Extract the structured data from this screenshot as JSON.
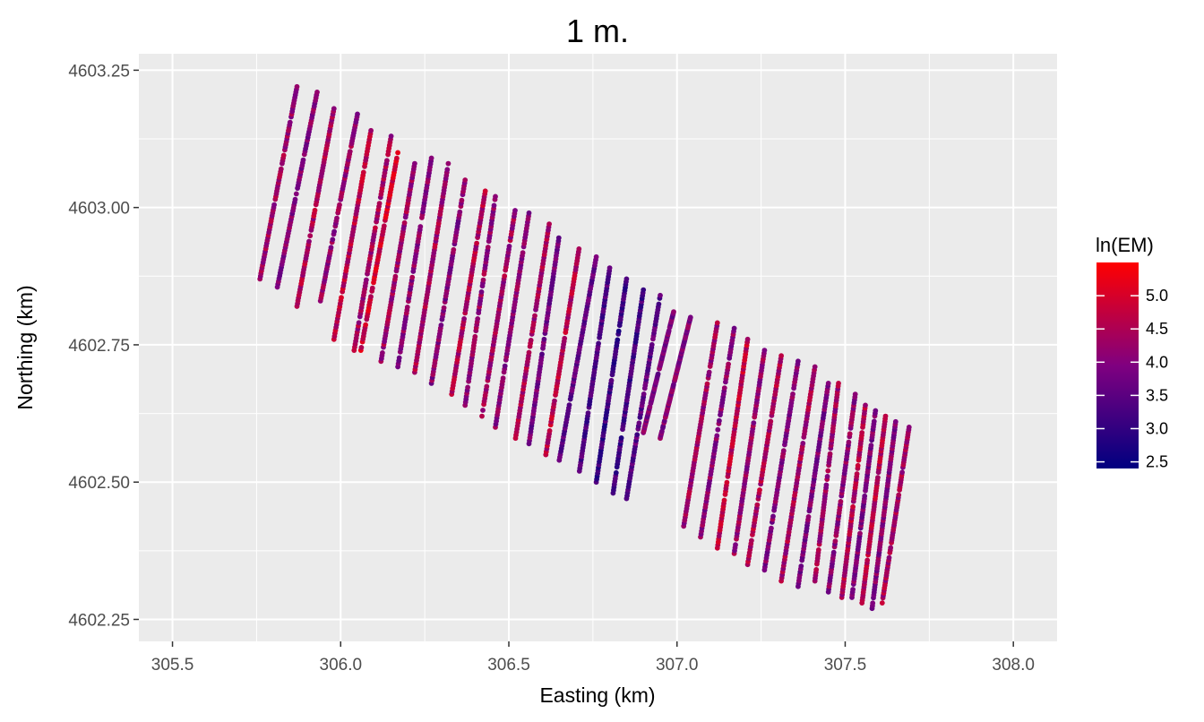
{
  "chart_data": {
    "type": "scatter",
    "title": "1 m.",
    "xlabel": "Easting (km)",
    "ylabel": "Northing (km)",
    "xlim": [
      305.4,
      308.13
    ],
    "ylim": [
      4602.21,
      4603.28
    ],
    "xticks": [
      "305.5",
      "306.0",
      "306.5",
      "307.0",
      "307.5",
      "308.0"
    ],
    "yticks": [
      "4602.25",
      "4602.50",
      "4602.75",
      "4603.00",
      "4603.25"
    ],
    "grid": true,
    "panel_background": "#ebebeb",
    "legend": {
      "title": "ln(EM)",
      "position": "right",
      "min": 2.4,
      "max": 5.5,
      "labels": [
        "2.5",
        "3.0",
        "3.5",
        "4.0",
        "4.5",
        "5.0"
      ],
      "color_low": "#000080",
      "color_mid": "#800080",
      "color_high": "#ff0000"
    },
    "survey_passes": [
      {
        "x1": 305.76,
        "y1": 4602.87,
        "x2": 305.87,
        "y2": 4603.22,
        "value": 4.3
      },
      {
        "x1": 305.81,
        "y1": 4602.85,
        "x2": 305.93,
        "y2": 4603.21,
        "value": 4.0
      },
      {
        "x1": 305.87,
        "y1": 4602.82,
        "x2": 305.98,
        "y2": 4603.18,
        "value": 4.5
      },
      {
        "x1": 305.94,
        "y1": 4602.83,
        "x2": 306.05,
        "y2": 4603.17,
        "value": 4.2
      },
      {
        "x1": 305.98,
        "y1": 4602.76,
        "x2": 306.09,
        "y2": 4603.14,
        "value": 4.6
      },
      {
        "x1": 306.04,
        "y1": 4602.74,
        "x2": 306.15,
        "y2": 4603.13,
        "value": 4.4
      },
      {
        "x1": 306.06,
        "y1": 4602.74,
        "x2": 306.17,
        "y2": 4603.1,
        "value": 4.9
      },
      {
        "x1": 306.12,
        "y1": 4602.72,
        "x2": 306.22,
        "y2": 4603.08,
        "value": 4.3
      },
      {
        "x1": 306.17,
        "y1": 4602.71,
        "x2": 306.27,
        "y2": 4603.09,
        "value": 4.1
      },
      {
        "x1": 306.22,
        "y1": 4602.7,
        "x2": 306.32,
        "y2": 4603.08,
        "value": 4.4
      },
      {
        "x1": 306.27,
        "y1": 4602.68,
        "x2": 306.37,
        "y2": 4603.05,
        "value": 4.0
      },
      {
        "x1": 306.33,
        "y1": 4602.66,
        "x2": 306.43,
        "y2": 4603.03,
        "value": 4.5
      },
      {
        "x1": 306.37,
        "y1": 4602.64,
        "x2": 306.46,
        "y2": 4603.02,
        "value": 4.2
      },
      {
        "x1": 306.42,
        "y1": 4602.62,
        "x2": 306.52,
        "y2": 4603.0,
        "value": 4.3
      },
      {
        "x1": 306.46,
        "y1": 4602.6,
        "x2": 306.56,
        "y2": 4602.99,
        "value": 4.1
      },
      {
        "x1": 306.52,
        "y1": 4602.58,
        "x2": 306.62,
        "y2": 4602.97,
        "value": 4.4
      },
      {
        "x1": 306.56,
        "y1": 4602.57,
        "x2": 306.65,
        "y2": 4602.95,
        "value": 3.8
      },
      {
        "x1": 306.61,
        "y1": 4602.55,
        "x2": 306.71,
        "y2": 4602.93,
        "value": 4.6
      },
      {
        "x1": 306.65,
        "y1": 4602.54,
        "x2": 306.76,
        "y2": 4602.91,
        "value": 3.6
      },
      {
        "x1": 306.71,
        "y1": 4602.52,
        "x2": 306.8,
        "y2": 4602.89,
        "value": 3.3
      },
      {
        "x1": 306.76,
        "y1": 4602.5,
        "x2": 306.85,
        "y2": 4602.87,
        "value": 3.1
      },
      {
        "x1": 306.81,
        "y1": 4602.48,
        "x2": 306.9,
        "y2": 4602.85,
        "value": 3.2
      },
      {
        "x1": 306.85,
        "y1": 4602.47,
        "x2": 306.95,
        "y2": 4602.84,
        "value": 3.5
      },
      {
        "x1": 306.9,
        "y1": 4602.59,
        "x2": 306.99,
        "y2": 4602.81,
        "value": 3.9
      },
      {
        "x1": 306.95,
        "y1": 4602.58,
        "x2": 307.04,
        "y2": 4602.8,
        "value": 4.0
      },
      {
        "x1": 307.02,
        "y1": 4602.42,
        "x2": 307.12,
        "y2": 4602.79,
        "value": 4.3
      },
      {
        "x1": 307.07,
        "y1": 4602.4,
        "x2": 307.17,
        "y2": 4602.78,
        "value": 4.1
      },
      {
        "x1": 307.12,
        "y1": 4602.38,
        "x2": 307.21,
        "y2": 4602.76,
        "value": 4.7
      },
      {
        "x1": 307.17,
        "y1": 4602.37,
        "x2": 307.26,
        "y2": 4602.74,
        "value": 4.2
      },
      {
        "x1": 307.21,
        "y1": 4602.35,
        "x2": 307.31,
        "y2": 4602.73,
        "value": 4.5
      },
      {
        "x1": 307.26,
        "y1": 4602.34,
        "x2": 307.36,
        "y2": 4602.72,
        "value": 4.0
      },
      {
        "x1": 307.31,
        "y1": 4602.32,
        "x2": 307.41,
        "y2": 4602.71,
        "value": 4.4
      },
      {
        "x1": 307.36,
        "y1": 4602.31,
        "x2": 307.45,
        "y2": 4602.68,
        "value": 3.9
      },
      {
        "x1": 307.41,
        "y1": 4602.32,
        "x2": 307.48,
        "y2": 4602.68,
        "value": 4.3
      },
      {
        "x1": 307.45,
        "y1": 4602.3,
        "x2": 307.53,
        "y2": 4602.66,
        "value": 4.1
      },
      {
        "x1": 307.49,
        "y1": 4602.29,
        "x2": 307.56,
        "y2": 4602.64,
        "value": 4.5
      },
      {
        "x1": 307.52,
        "y1": 4602.29,
        "x2": 307.59,
        "y2": 4602.63,
        "value": 3.9
      },
      {
        "x1": 307.55,
        "y1": 4602.28,
        "x2": 307.62,
        "y2": 4602.62,
        "value": 4.6
      },
      {
        "x1": 307.58,
        "y1": 4602.27,
        "x2": 307.65,
        "y2": 4602.61,
        "value": 4.0
      },
      {
        "x1": 307.61,
        "y1": 4602.28,
        "x2": 307.69,
        "y2": 4602.6,
        "value": 4.4
      }
    ]
  }
}
